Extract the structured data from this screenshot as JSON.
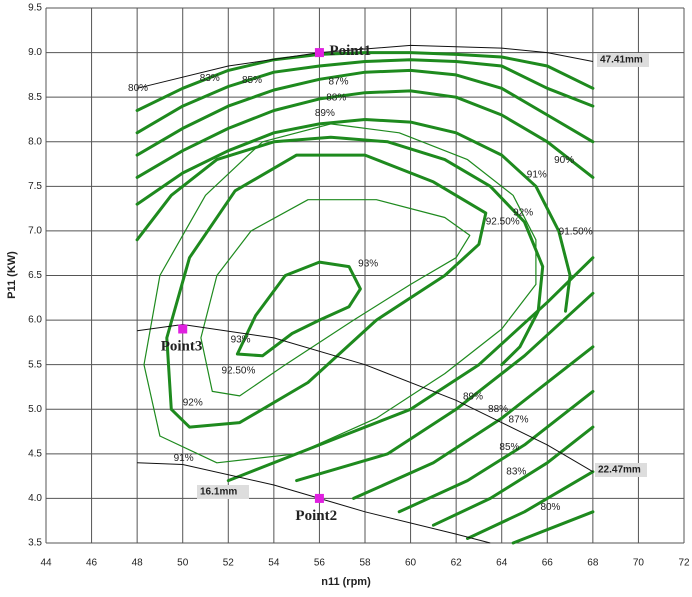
{
  "chart_data": {
    "type": "contour",
    "x_label": "n11 (rpm)",
    "y_label": "P11 (KW)",
    "xlim": [
      44,
      72
    ],
    "ylim": [
      3.5,
      9.5
    ],
    "xticks": [
      44,
      46,
      48,
      50,
      52,
      54,
      56,
      58,
      60,
      62,
      64,
      66,
      68,
      70,
      72
    ],
    "yticks": [
      3.5,
      {
        "value": 4,
        "label": "4.0"
      },
      4.5,
      {
        "value": 5,
        "label": "5.0"
      },
      5.5,
      {
        "value": 6,
        "label": "6.0"
      },
      6.5,
      {
        "value": 7,
        "label": "7.0"
      },
      7.5,
      {
        "value": 8,
        "label": "8.0"
      },
      8.5,
      {
        "value": 9,
        "label": "9.0"
      },
      9.5
    ],
    "grid": true,
    "contour_color": "#1e8a1e",
    "contours": [
      {
        "x": [
          52.4,
          53.2,
          54.5,
          56,
          57.3,
          57.8,
          57.3,
          56,
          54.8,
          53.5,
          52.4
        ],
        "y": [
          5.62,
          6.05,
          6.5,
          6.65,
          6.6,
          6.35,
          6.15,
          6.0,
          5.85,
          5.6,
          5.62
        ]
      },
      {
        "x": [
          51.3,
          50.8,
          51.5,
          53,
          55.5,
          58.5,
          61.5,
          62.6,
          62,
          60,
          57.5,
          54.5,
          52.5,
          51.3
        ],
        "y": [
          5.2,
          5.8,
          6.5,
          7.0,
          7.35,
          7.35,
          7.15,
          6.95,
          6.7,
          6.4,
          6.0,
          5.5,
          5.15,
          5.2
        ]
      },
      {
        "x": [
          49.5,
          49.3,
          50.3,
          52.3,
          55,
          58,
          61,
          63.3,
          63,
          61.5,
          58.5,
          55.5,
          52.5,
          50.3,
          49.5
        ],
        "y": [
          5.0,
          5.8,
          6.7,
          7.45,
          7.85,
          7.85,
          7.55,
          7.2,
          6.85,
          6.5,
          6.0,
          5.3,
          4.85,
          4.8,
          5.0
        ]
      },
      {
        "x": [
          49,
          48.3,
          49,
          51,
          53.5,
          56.5,
          59.5,
          62.5,
          64.5,
          65.5,
          65.5,
          64,
          61.5,
          58.5,
          55,
          51.5,
          49
        ],
        "y": [
          4.7,
          5.5,
          6.5,
          7.4,
          8.0,
          8.2,
          8.1,
          7.8,
          7.4,
          6.9,
          6.4,
          5.9,
          5.4,
          4.9,
          4.5,
          4.4,
          4.7
        ]
      },
      {
        "x": [
          48,
          49.5,
          51.5,
          54,
          56.5,
          59,
          61.5,
          63.5,
          65,
          65.8,
          65.6,
          64.8,
          64
        ],
        "y": [
          6.9,
          7.4,
          7.8,
          8.0,
          8.05,
          8.0,
          7.8,
          7.5,
          7.1,
          6.6,
          6.1,
          5.7,
          5.5
        ]
      },
      {
        "x": [
          48,
          50,
          52,
          54,
          56,
          58,
          60,
          62,
          64,
          65.5,
          66.5,
          67,
          66.8
        ],
        "y": [
          7.3,
          7.65,
          7.9,
          8.1,
          8.2,
          8.25,
          8.22,
          8.1,
          7.85,
          7.5,
          7.0,
          6.5,
          6.1
        ]
      },
      {
        "x": [
          48,
          50,
          52,
          54,
          56,
          58,
          60,
          62,
          64,
          66,
          68
        ],
        "y": [
          7.6,
          7.9,
          8.15,
          8.35,
          8.48,
          8.55,
          8.57,
          8.5,
          8.3,
          8.0,
          7.6
        ]
      },
      {
        "x": [
          48,
          50,
          52,
          54,
          56,
          58,
          60,
          62,
          64,
          66,
          68
        ],
        "y": [
          7.85,
          8.15,
          8.4,
          8.58,
          8.7,
          8.78,
          8.8,
          8.75,
          8.6,
          8.3,
          8.0
        ]
      },
      {
        "x": [
          48,
          50,
          52,
          54,
          56,
          58,
          60,
          62,
          64,
          66,
          68
        ],
        "y": [
          8.1,
          8.4,
          8.62,
          8.78,
          8.85,
          8.9,
          8.92,
          8.9,
          8.85,
          8.6,
          8.4
        ]
      },
      {
        "x": [
          48,
          50,
          52,
          54,
          56,
          58,
          60,
          62,
          64,
          66,
          68
        ],
        "y": [
          8.35,
          8.6,
          8.8,
          8.92,
          8.98,
          9.0,
          9.0,
          8.98,
          8.95,
          8.85,
          8.6
        ]
      },
      {
        "x": [
          52,
          56,
          60,
          63,
          66,
          68
        ],
        "y": [
          4.2,
          4.6,
          5.0,
          5.5,
          6.2,
          6.7
        ]
      },
      {
        "x": [
          55,
          59,
          62,
          65,
          68
        ],
        "y": [
          4.2,
          4.5,
          5.0,
          5.6,
          6.3
        ]
      },
      {
        "x": [
          57.5,
          61,
          64,
          68
        ],
        "y": [
          4.0,
          4.4,
          4.9,
          5.7
        ]
      },
      {
        "x": [
          59.5,
          62.5,
          65,
          68
        ],
        "y": [
          3.85,
          4.2,
          4.6,
          5.2
        ]
      },
      {
        "x": [
          61,
          63.5,
          66,
          68
        ],
        "y": [
          3.7,
          4.0,
          4.4,
          4.8
        ]
      },
      {
        "x": [
          62.5,
          65,
          68
        ],
        "y": [
          3.55,
          3.85,
          4.3
        ]
      },
      {
        "x": [
          64.5,
          66.5,
          68
        ],
        "y": [
          3.5,
          3.7,
          3.85
        ]
      }
    ],
    "annotations": [
      "80%",
      "83%",
      "85%",
      "87%",
      "88%",
      "89%",
      "90%",
      "91%",
      "92%",
      "92.50%",
      "91.50%",
      "93%",
      "93%",
      "92.50%",
      "92%",
      "91%",
      "89%",
      "88%",
      "87%",
      "85%",
      "83%",
      "80%"
    ],
    "gate_lines": [
      {
        "label": "47.41mm",
        "x": [
          48,
          52,
          56,
          60,
          64,
          66,
          68
        ],
        "y": [
          8.6,
          8.85,
          9.0,
          9.08,
          9.05,
          9.0,
          8.9
        ]
      },
      {
        "label": "22.47mm",
        "x": [
          48,
          50,
          54,
          58,
          62,
          66,
          68
        ],
        "y": [
          5.88,
          5.95,
          5.8,
          5.5,
          5.1,
          4.6,
          4.3
        ]
      },
      {
        "label": "16.1mm",
        "x": [
          48,
          50,
          54,
          56,
          58,
          62,
          63.5
        ],
        "y": [
          4.4,
          4.38,
          4.15,
          4.0,
          3.85,
          3.6,
          3.5
        ]
      }
    ],
    "point_color": "#e020e0",
    "points": [
      {
        "name": "Point1",
        "x": 56,
        "y": 9.0
      },
      {
        "name": "Point2",
        "x": 56,
        "y": 4.0
      },
      {
        "name": "Point3",
        "x": 50,
        "y": 5.9
      }
    ]
  }
}
